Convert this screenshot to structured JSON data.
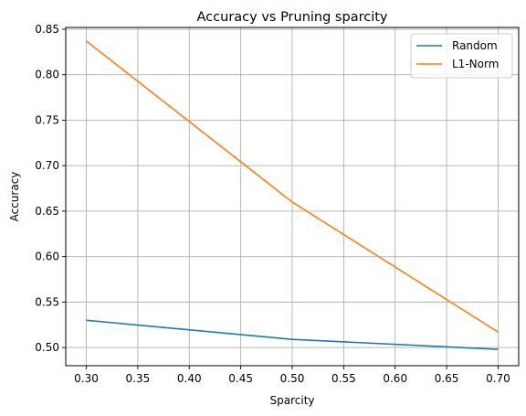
{
  "chart_data": {
    "type": "line",
    "title": "Accuracy vs Pruning sparcity",
    "xlabel": "Sparcity",
    "ylabel": "Accuracy",
    "xlim": [
      0.28,
      0.72
    ],
    "ylim": [
      0.48,
      0.852
    ],
    "xticks": [
      0.3,
      0.35,
      0.4,
      0.45,
      0.5,
      0.55,
      0.6,
      0.65,
      0.7
    ],
    "xtick_labels": [
      "0.30",
      "0.35",
      "0.40",
      "0.45",
      "0.50",
      "0.55",
      "0.60",
      "0.65",
      "0.70"
    ],
    "yticks": [
      0.5,
      0.55,
      0.6,
      0.65,
      0.7,
      0.75,
      0.8,
      0.85
    ],
    "ytick_labels": [
      "0.50",
      "0.55",
      "0.60",
      "0.65",
      "0.70",
      "0.75",
      "0.80",
      "0.85"
    ],
    "grid": true,
    "legend_position": "top-right",
    "x": [
      0.3,
      0.5,
      0.7
    ],
    "series": [
      {
        "name": "Random",
        "color": "#1f77b4",
        "values": [
          0.53,
          0.509,
          0.498
        ]
      },
      {
        "name": "L1-Norm",
        "color": "#ff7f0e",
        "values": [
          0.837,
          0.66,
          0.517
        ]
      }
    ]
  }
}
